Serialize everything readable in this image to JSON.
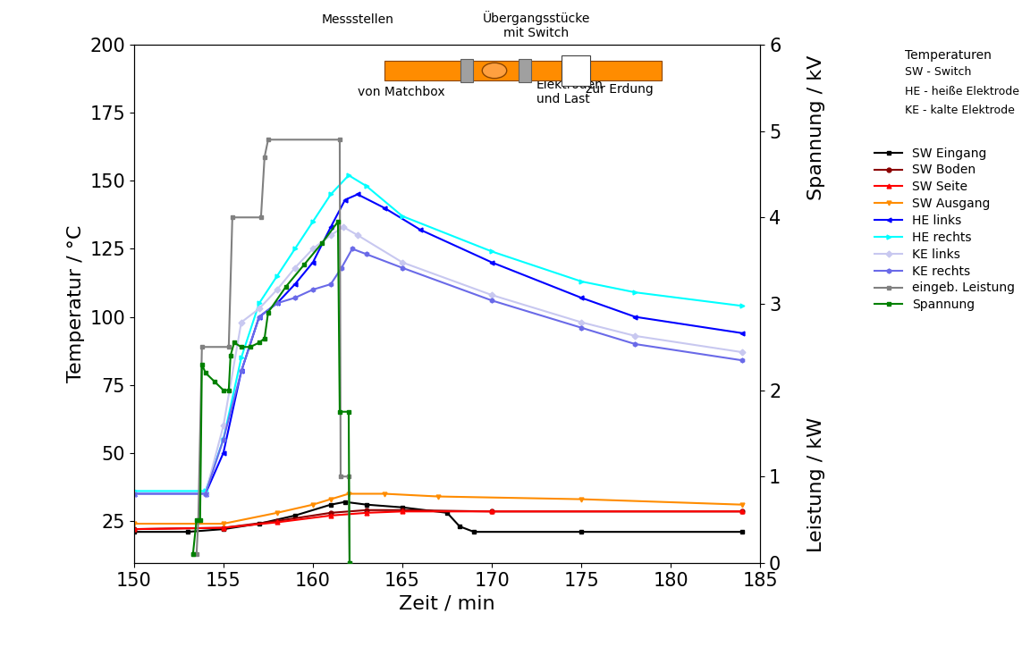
{
  "chart_data": {
    "type": "line",
    "x_label": "Zeit / min",
    "y_label": "Temperatur / °C",
    "y2_labels": [
      "Leistung / kW",
      "Spannung / kV"
    ],
    "xlim": [
      150,
      185
    ],
    "xticks": [
      150,
      155,
      160,
      165,
      170,
      175,
      180,
      185
    ],
    "ylim": [
      9.6,
      200
    ],
    "yticks": [
      25,
      50,
      75,
      100,
      125,
      150,
      175,
      200
    ],
    "y2lim": [
      0,
      6
    ],
    "y2ticks": [
      0,
      1,
      2,
      3,
      4,
      5,
      6
    ],
    "grid": false,
    "legend": "upper left",
    "legend_title": "Temperaturen",
    "notes": [
      "SW - Switch",
      "HE - heiße Elektrode",
      "KE - kalte Elektrode"
    ],
    "diagram_labels": {
      "title": "Messstellen",
      "switch": "Übergangsstücke\nmit Switch",
      "source": "von Matchbox",
      "load": "Elektroden\nund Last",
      "ground": "zur Erdung"
    },
    "series": [
      {
        "name": "SW Eingang",
        "color": "#000000",
        "marker": "s",
        "line_style": "solid",
        "x": [
          150,
          153,
          155,
          157,
          159,
          161,
          161.8,
          163,
          165,
          167.5,
          168.2,
          169,
          175,
          184
        ],
        "values": [
          21,
          21,
          22,
          24,
          27,
          31,
          32,
          31,
          30,
          28,
          23,
          21,
          21,
          21
        ]
      },
      {
        "name": "SW Boden",
        "color": "#8b0000",
        "marker": "o",
        "line_style": "solid",
        "x": [
          150,
          155,
          158,
          161,
          163,
          165,
          170,
          184
        ],
        "values": [
          22,
          22.5,
          25,
          28,
          29,
          29,
          28.5,
          28.5
        ]
      },
      {
        "name": "SW Seite",
        "color": "#ff0000",
        "marker": "^",
        "line_style": "solid",
        "x": [
          150,
          155,
          158,
          161,
          163,
          165,
          170,
          184
        ],
        "values": [
          22,
          22.5,
          24.5,
          27,
          28,
          28.5,
          28.5,
          28.5
        ]
      },
      {
        "name": "SW Ausgang",
        "color": "#ff8c00",
        "marker": "v",
        "line_style": "solid",
        "x": [
          150,
          155,
          158,
          160,
          161,
          162,
          164,
          167,
          175,
          184
        ],
        "values": [
          24,
          24,
          28,
          31,
          33,
          35,
          35,
          34,
          33,
          31
        ]
      },
      {
        "name": "HE links",
        "color": "#0000ff",
        "marker": "<",
        "line_style": "solid",
        "x": [
          150,
          154,
          155,
          156,
          157,
          158,
          159,
          160,
          161,
          161.8,
          162.5,
          164,
          166,
          170,
          175,
          178,
          184
        ],
        "values": [
          35,
          35,
          50,
          80,
          100,
          105,
          112,
          120,
          133,
          143,
          145,
          140,
          132,
          120,
          107,
          100,
          94
        ]
      },
      {
        "name": "HE rechts",
        "color": "#00ffff",
        "marker": ">",
        "line_style": "solid",
        "x": [
          150,
          154,
          155,
          156,
          157,
          158,
          159,
          160,
          161,
          162,
          163,
          165,
          170,
          175,
          178,
          184
        ],
        "values": [
          36,
          36,
          55,
          85,
          105,
          115,
          125,
          135,
          145,
          152,
          148,
          137,
          124,
          113,
          109,
          104
        ]
      },
      {
        "name": "KE links",
        "color": "#c8c8f0",
        "marker": "D",
        "line_style": "solid",
        "x": [
          150,
          154,
          155,
          156,
          157,
          158,
          159,
          160,
          161,
          161.7,
          162.5,
          165,
          170,
          175,
          178,
          184
        ],
        "values": [
          35,
          35,
          60,
          98,
          103,
          110,
          118,
          125,
          130,
          133,
          130,
          120,
          108,
          98,
          93,
          87
        ]
      },
      {
        "name": "KE rechts",
        "color": "#6a6ae8",
        "marker": "h",
        "line_style": "solid",
        "x": [
          150,
          154,
          155,
          156,
          157,
          158,
          159,
          160,
          161,
          161.6,
          162.2,
          163,
          165,
          170,
          175,
          178,
          184
        ],
        "values": [
          35,
          35,
          55,
          80,
          100,
          105,
          107,
          110,
          112,
          118,
          125,
          123,
          118,
          106,
          96,
          90,
          84
        ]
      },
      {
        "name": "eingeb. Leistung",
        "color": "#808080",
        "marker": "s",
        "line_style": "solid",
        "axis": "y2",
        "x": [
          153.3,
          153.5,
          153.6,
          153.8,
          155.3,
          155.5,
          157.1,
          157.3,
          157.5,
          161.5,
          161.55,
          162.0,
          162.05
        ],
        "values": [
          0.1,
          0.1,
          0.5,
          2.5,
          2.5,
          4.0,
          4.0,
          4.7,
          4.9,
          4.9,
          1.0,
          1.0,
          0.0
        ]
      },
      {
        "name": "Spannung",
        "color": "#008000",
        "marker": "s",
        "line_style": "solid",
        "axis": "y2",
        "x": [
          153.3,
          153.5,
          153.7,
          153.8,
          154.0,
          154.5,
          155.0,
          155.3,
          155.4,
          155.6,
          156.0,
          156.5,
          157.0,
          157.3,
          157.5,
          158.5,
          159.5,
          160.5,
          161.4,
          161.5,
          162.0,
          162.05
        ],
        "values": [
          0.1,
          0.5,
          0.5,
          2.3,
          2.2,
          2.1,
          2.0,
          2.0,
          2.4,
          2.55,
          2.5,
          2.5,
          2.55,
          2.6,
          2.9,
          3.2,
          3.45,
          3.7,
          3.95,
          1.75,
          1.75,
          0.0
        ]
      }
    ]
  }
}
